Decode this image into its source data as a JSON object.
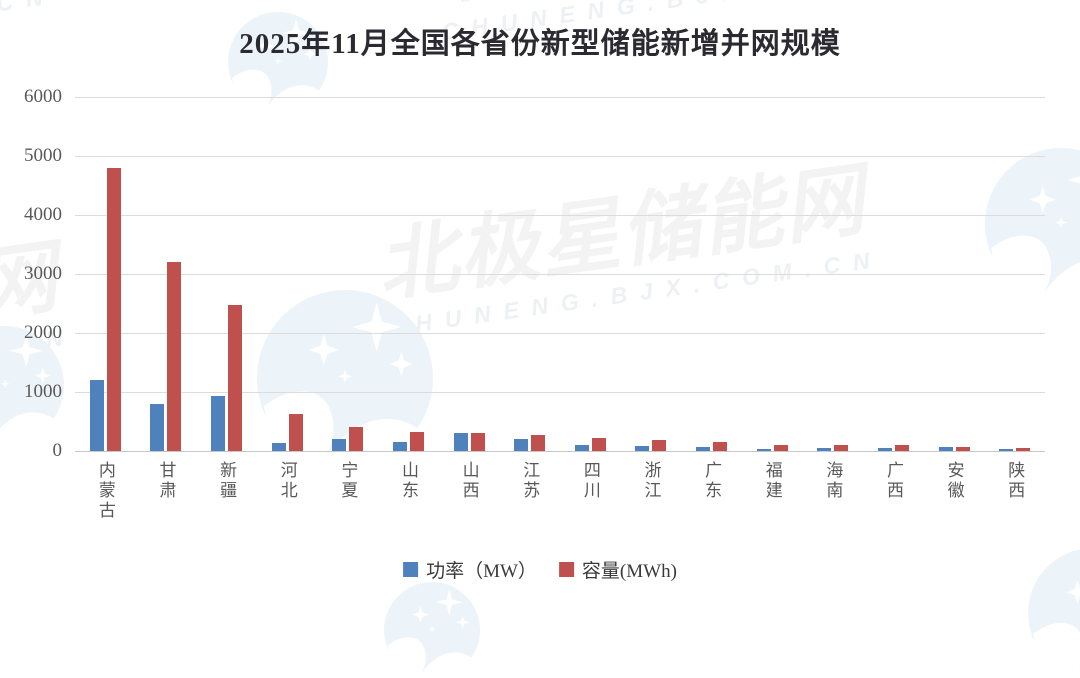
{
  "title": "2025年11月全国各省份新型储能新增并网规模",
  "chart_data": {
    "type": "bar",
    "categories": [
      "内蒙古",
      "甘肃",
      "新疆",
      "河北",
      "宁夏",
      "山东",
      "山西",
      "江苏",
      "四川",
      "浙江",
      "广东",
      "福建",
      "海南",
      "广西",
      "安徽",
      "陕西"
    ],
    "series": [
      {
        "name": "功率（MW）",
        "color": "#4f81bd",
        "values": [
          1200,
          790,
          940,
          130,
          200,
          160,
          310,
          210,
          110,
          90,
          75,
          40,
          55,
          55,
          70,
          40
        ]
      },
      {
        "name": "容量(MWh)",
        "color": "#c0504d",
        "values": [
          4800,
          3200,
          2470,
          630,
          410,
          330,
          300,
          265,
          220,
          190,
          145,
          110,
          105,
          100,
          60,
          55
        ]
      }
    ],
    "title": "2025年11月全国各省份新型储能新增并网规模",
    "xlabel": "",
    "ylabel": "",
    "ylim": [
      0,
      6000
    ],
    "yticks": [
      0,
      1000,
      2000,
      3000,
      4000,
      5000,
      6000
    ],
    "grid": true,
    "legend_position": "bottom"
  },
  "watermark": {
    "brand_cn": "北极星储能网",
    "brand_url": "CHUNENG.BJX.COM.CN"
  },
  "colors": {
    "title_text": "#2a2a30",
    "axis_label": "#595959",
    "gridline": "#dcdcdc",
    "power_blue": "#4f81bd",
    "capacity_red": "#c0504d",
    "logo_circle": "#ecf3f9"
  }
}
